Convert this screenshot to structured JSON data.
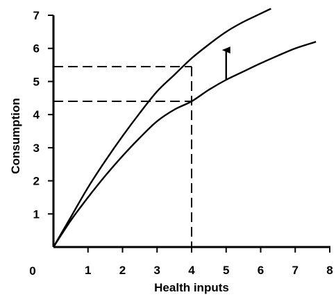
{
  "chart_data": {
    "type": "line",
    "title": "",
    "xlabel": "Health inputs",
    "ylabel": "Consumption",
    "xlim": [
      0,
      8
    ],
    "ylim": [
      0,
      7
    ],
    "origin_label": "0",
    "x_ticks": [
      1,
      2,
      3,
      4,
      5,
      6,
      7,
      8
    ],
    "x_tick_labels": [
      "1",
      "2",
      "3",
      "4",
      "5",
      "6",
      "7",
      "8"
    ],
    "y_ticks": [
      1,
      2,
      3,
      4,
      5,
      6,
      7
    ],
    "y_tick_labels": [
      "1",
      "2",
      "3",
      "4",
      "5",
      "6",
      "7"
    ],
    "grid": false,
    "legend": "none",
    "series": [
      {
        "x": [
          0,
          0.5,
          1,
          1.5,
          2,
          2.5,
          3,
          3.5,
          4,
          4.5,
          5,
          5.5,
          6,
          6.3
        ],
        "values": [
          0,
          0.9,
          1.8,
          2.6,
          3.35,
          4.05,
          4.7,
          5.2,
          5.7,
          6.12,
          6.5,
          6.8,
          7.05,
          7.2
        ],
        "color": "#000000"
      },
      {
        "x": [
          0,
          0.5,
          1,
          1.5,
          2,
          2.5,
          3,
          3.5,
          4,
          4.5,
          5,
          5.5,
          6,
          6.5,
          7,
          7.6
        ],
        "values": [
          0,
          0.8,
          1.5,
          2.15,
          2.75,
          3.3,
          3.8,
          4.15,
          4.4,
          4.75,
          5.05,
          5.3,
          5.55,
          5.78,
          6.0,
          6.2
        ],
        "color": "#000000"
      }
    ],
    "reference_lines": [
      {
        "x": 4,
        "y": 5.45
      },
      {
        "x": 4,
        "y": 4.4
      }
    ],
    "arrow": {
      "x": 5,
      "from_y": 5.05,
      "to_y": 5.95
    }
  }
}
